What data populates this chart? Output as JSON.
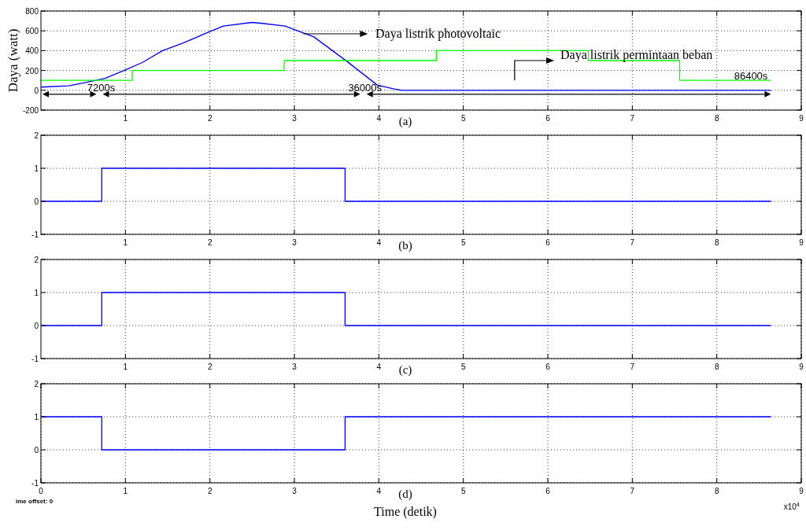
{
  "chart_data": [
    {
      "type": "line",
      "title": "(a)",
      "ylabel": "Daya (watt)",
      "xlim": [
        0,
        9
      ],
      "xticks": [
        1,
        2,
        3,
        4,
        5,
        6,
        7,
        8,
        9
      ],
      "ylim": [
        -200,
        800
      ],
      "yticks": [
        -200,
        0,
        200,
        400,
        600,
        800
      ],
      "grid": true,
      "legend": false,
      "series": [
        {
          "name": "Daya listrik photovoltaic",
          "color": "#0000ff",
          "x": [
            0,
            0.33,
            0.54,
            0.76,
            1.0,
            1.2,
            1.44,
            1.69,
            2.0,
            2.16,
            2.5,
            2.62,
            2.89,
            3.23,
            3.62,
            3.98,
            4.18,
            4.27,
            8.64
          ],
          "values": [
            32,
            45,
            80,
            120,
            205,
            280,
            400,
            480,
            592,
            648,
            685,
            675,
            648,
            539,
            293,
            53,
            13,
            0,
            0
          ]
        },
        {
          "name": "Daya listrik permintaan beban",
          "color": "#00ff00",
          "type": "step",
          "x": [
            0,
            1.08,
            2.88,
            4.68,
            6.48,
            7.56,
            8.64
          ],
          "values": [
            100,
            200,
            300,
            400,
            300,
            100,
            100
          ]
        }
      ],
      "annotations": [
        "7200s",
        "36000s",
        "86400s"
      ]
    },
    {
      "type": "step",
      "title": "(b)",
      "xlim": [
        0,
        9
      ],
      "xticks": [
        1,
        2,
        3,
        4,
        5,
        6,
        7,
        8,
        9
      ],
      "ylim": [
        -1,
        2
      ],
      "yticks": [
        -1,
        0,
        1,
        2
      ],
      "grid": true,
      "legend": false,
      "series": [
        {
          "color": "#0000ff",
          "x": [
            0,
            0.72,
            3.6,
            8.64
          ],
          "values": [
            0,
            1,
            0,
            0
          ]
        }
      ]
    },
    {
      "type": "step",
      "title": "(c)",
      "xlim": [
        0,
        9
      ],
      "xticks": [
        1,
        2,
        3,
        4,
        5,
        6,
        7,
        8,
        9
      ],
      "ylim": [
        -1,
        2
      ],
      "yticks": [
        -1,
        0,
        1,
        2
      ],
      "grid": true,
      "legend": false,
      "series": [
        {
          "color": "#0000ff",
          "x": [
            0,
            0.72,
            3.6,
            8.64
          ],
          "values": [
            0,
            1,
            0,
            0
          ]
        }
      ]
    },
    {
      "type": "step",
      "title": "(d)",
      "xlabel": "Time (detik)",
      "xlim": [
        0,
        9
      ],
      "xticks": [
        0,
        1,
        2,
        3,
        4,
        5,
        6,
        7,
        8,
        9
      ],
      "ylim": [
        -1,
        2
      ],
      "yticks": [
        -1,
        0,
        1,
        2
      ],
      "grid": true,
      "legend": false,
      "series": [
        {
          "color": "#0000ff",
          "x": [
            0,
            0.72,
            3.6,
            8.64
          ],
          "values": [
            1,
            0,
            1,
            1
          ]
        }
      ],
      "annotations": [
        "x10$^{4}$",
        "ime offset:  0"
      ]
    }
  ]
}
